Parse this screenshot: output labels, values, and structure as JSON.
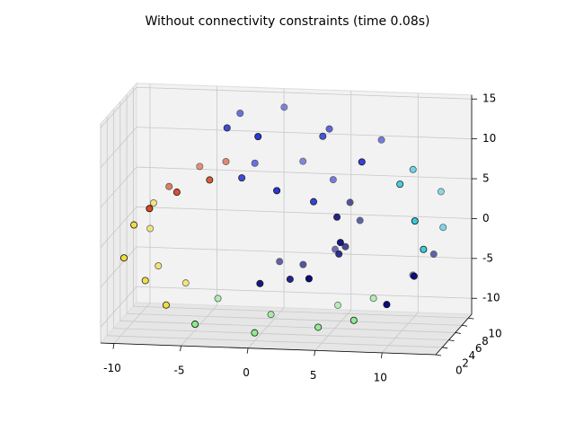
{
  "chart_data": {
    "type": "scatter3d",
    "title": "Without connectivity constraints (time 0.08s)",
    "xlim": [
      -11,
      14
    ],
    "ylim": [
      0,
      11
    ],
    "zlim": [
      -12,
      15.5
    ],
    "xticks": [
      -10,
      -5,
      0,
      5,
      10
    ],
    "yticks": [
      0,
      2,
      4,
      6,
      8,
      10
    ],
    "zticks": [
      -10,
      -5,
      0,
      5,
      10,
      15
    ],
    "grid": true,
    "series": [
      {
        "color": "#00007f",
        "x": [
          0.4,
          2.4,
          4.3,
          5.8,
          6.4,
          5.9,
          10.1,
          11.9,
          0.4,
          2.4,
          4.3,
          5.8,
          6.4,
          5.9,
          10.1,
          11.9
        ],
        "y": [
          2,
          3,
          1,
          4,
          2,
          3,
          1,
          2,
          8,
          7,
          9,
          6,
          8,
          7,
          9,
          8
        ],
        "z": [
          -4.8,
          -4.6,
          -3.5,
          -1.7,
          0.7,
          3.4,
          -6.4,
          -3.2,
          -4.8,
          -4.6,
          -3.5,
          -1.7,
          0.7,
          3.4,
          -6.4,
          -3.2
        ]
      },
      {
        "color": "#1f2fd8",
        "x": [
          4.4,
          1.9,
          -1.2,
          8.0,
          4.6,
          0.5,
          -2.3,
          4.4,
          1.9,
          -1.2,
          8.0,
          4.6,
          0.5,
          -2.3
        ],
        "y": [
          2,
          1,
          3,
          2,
          4,
          1,
          3,
          8,
          9,
          7,
          8,
          6,
          9,
          7
        ],
        "z": [
          5.7,
          7.4,
          7.9,
          10.9,
          13.0,
          14.1,
          14.1,
          5.7,
          7.4,
          7.9,
          10.9,
          13.0,
          14.1,
          14.1
        ]
      },
      {
        "color": "#d8401a",
        "x": [
          -3.6,
          -5.8,
          -7.6,
          -3.6,
          -5.8,
          -7.6
        ],
        "y": [
          3,
          2,
          1,
          8,
          9,
          7
        ],
        "z": [
          7.5,
          6.3,
          4.6,
          7.5,
          6.3,
          4.6
        ]
      },
      {
        "color": "#f5dc30",
        "x": [
          -9.0,
          -9.5,
          -8.4,
          -6.6,
          -9.0,
          -9.5,
          -8.4,
          -6.6
        ],
        "y": [
          2,
          1,
          3,
          2,
          8,
          9,
          7,
          8
        ],
        "z": [
          2.0,
          -1.7,
          -5.4,
          -7.9,
          2.0,
          -1.7,
          -5.4,
          -7.9
        ]
      },
      {
        "color": "#86ee86",
        "x": [
          -4.2,
          0.0,
          4.5,
          7.4,
          -4.2,
          0.0,
          4.5,
          7.4
        ],
        "y": [
          1,
          2,
          3,
          2,
          8,
          7,
          9,
          8
        ],
        "z": [
          -9.7,
          -11.0,
          -10.5,
          -9.0,
          -9.7,
          -11.0,
          -10.5,
          -9.0
        ]
      },
      {
        "color": "#2cc8e0",
        "x": [
          12.6,
          12.2,
          10.6,
          12.6,
          12.2,
          10.6
        ],
        "y": [
          2,
          1,
          3,
          8,
          9,
          7
        ],
        "z": [
          0.2,
          4.2,
          7.8,
          0.2,
          4.2,
          7.8
        ]
      }
    ]
  }
}
